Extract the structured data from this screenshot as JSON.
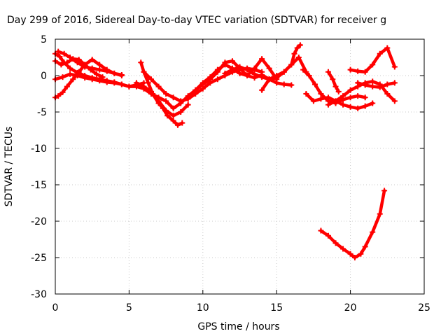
{
  "chart_data": {
    "type": "scatter",
    "title": "Day 299 of 2016, Sidereal Day-to-day VTEC variation (SDTVAR) for receiver g",
    "xlabel": "GPS time / hours",
    "ylabel": "SDTVAR / TECUs",
    "xlim": [
      0,
      25
    ],
    "ylim": [
      -30,
      5
    ],
    "x_ticks": [
      0,
      5,
      10,
      15,
      20,
      25
    ],
    "y_ticks": [
      5,
      0,
      -5,
      -10,
      -15,
      -20,
      -25,
      -30
    ],
    "grid": true,
    "legend": "none",
    "marker": "plus",
    "color": "#ff0000",
    "series": [
      {
        "x": [
          0.0,
          0.3,
          0.6,
          1.0,
          1.5,
          2.0,
          2.5,
          3.0,
          3.5,
          4.0,
          4.5,
          5.0,
          5.5,
          6.0,
          6.5,
          7.0,
          7.5,
          8.0,
          8.5,
          9.0,
          9.5,
          10.0,
          10.5,
          11.0,
          11.5,
          12.0,
          12.5,
          13.0,
          13.5,
          14.0,
          14.5,
          15.0,
          15.5,
          16.0
        ],
        "y": [
          3.0,
          2.6,
          1.8,
          1.0,
          0.4,
          0.0,
          -0.3,
          -0.5,
          -0.7,
          -0.9,
          -1.2,
          -1.5,
          -1.5,
          -1.8,
          -2.5,
          -3.0,
          -3.5,
          -4.5,
          -3.8,
          -2.8,
          -2.0,
          -1.0,
          -0.2,
          0.8,
          1.5,
          1.0,
          0.3,
          0.0,
          -0.3,
          0.1,
          -0.5,
          -1.0,
          -1.2,
          -1.3
        ]
      },
      {
        "x": [
          0.0,
          0.2,
          0.5,
          0.8,
          1.2,
          1.6,
          2.0,
          2.5,
          3.0,
          3.5,
          4.0,
          4.5
        ],
        "y": [
          -3.0,
          -2.8,
          -2.3,
          -1.5,
          -0.5,
          0.5,
          1.5,
          2.2,
          1.5,
          0.8,
          0.3,
          0.0
        ]
      },
      {
        "x": [
          0.0,
          0.4,
          0.8,
          1.2,
          1.6,
          2.0,
          2.4,
          2.8,
          3.2
        ],
        "y": [
          2.0,
          1.5,
          1.8,
          2.3,
          2.2,
          1.5,
          0.8,
          0.2,
          -0.2
        ]
      },
      {
        "x": [
          0.2,
          0.6,
          1.0,
          1.5,
          2.0,
          2.5,
          3.0,
          3.5,
          4.0,
          4.5
        ],
        "y": [
          3.3,
          3.0,
          2.5,
          1.8,
          1.2,
          1.0,
          0.8,
          0.6,
          0.3,
          0.1
        ]
      },
      {
        "x": [
          0.0,
          0.5,
          1.0,
          1.5,
          2.0,
          2.5,
          3.0,
          3.5,
          4.0,
          4.5,
          5.0,
          5.5,
          6.0
        ],
        "y": [
          -0.5,
          -0.2,
          0.2,
          0.0,
          -0.3,
          -0.5,
          -0.7,
          -0.9,
          -1.0,
          -1.2,
          -1.5,
          -1.3,
          -1.0
        ]
      },
      {
        "x": [
          5.8,
          6.0,
          6.3,
          6.6,
          7.0,
          7.3,
          7.6,
          8.0,
          8.3,
          8.6
        ],
        "y": [
          1.8,
          0.5,
          -1.0,
          -2.5,
          -3.8,
          -4.5,
          -5.5,
          -6.2,
          -6.8,
          -6.5
        ]
      },
      {
        "x": [
          5.5,
          6.0,
          6.5,
          7.0,
          7.5,
          8.0,
          8.5,
          9.0
        ],
        "y": [
          -1.0,
          -1.5,
          -2.2,
          -3.5,
          -4.8,
          -5.5,
          -5.0,
          -4.0
        ]
      },
      {
        "x": [
          6.0,
          6.5,
          7.0,
          7.5,
          8.0,
          8.5,
          9.0,
          9.5,
          10.0,
          10.5,
          11.0,
          11.5,
          12.0,
          12.5,
          13.0,
          13.5,
          14.0
        ],
        "y": [
          0.5,
          -0.5,
          -1.5,
          -2.5,
          -3.0,
          -3.5,
          -3.2,
          -2.5,
          -1.8,
          -1.0,
          -0.5,
          0.0,
          0.5,
          0.8,
          1.0,
          0.8,
          0.5
        ]
      },
      {
        "x": [
          9.0,
          9.5,
          10.0,
          10.5,
          11.0,
          11.5,
          12.0,
          12.5,
          13.0,
          13.5,
          14.0,
          14.5,
          15.0
        ],
        "y": [
          -3.0,
          -2.0,
          -1.2,
          -0.5,
          0.5,
          1.8,
          2.0,
          1.0,
          0.0,
          1.0,
          2.3,
          1.0,
          -0.5
        ]
      },
      {
        "x": [
          11.5,
          12.0,
          12.5,
          13.0,
          13.5,
          14.0,
          14.5,
          15.0,
          15.5,
          16.0,
          16.5,
          17.0
        ],
        "y": [
          0.3,
          0.8,
          1.2,
          0.8,
          0.2,
          -0.2,
          -0.5,
          -0.3,
          0.5,
          1.5,
          2.5,
          0.5
        ]
      },
      {
        "x": [
          14.0,
          14.5,
          15.0,
          15.5,
          16.0,
          16.2,
          16.4,
          16.6
        ],
        "y": [
          -2.0,
          -0.5,
          0.0,
          0.5,
          1.5,
          3.0,
          3.8,
          4.2
        ]
      },
      {
        "x": [
          16.8,
          17.2,
          17.6,
          18.0,
          18.5,
          19.0,
          19.5,
          20.0,
          20.5,
          21.0
        ],
        "y": [
          0.8,
          0.0,
          -1.2,
          -2.5,
          -3.5,
          -3.8,
          -3.3,
          -3.0,
          -2.8,
          -3.0
        ]
      },
      {
        "x": [
          17.0,
          17.5,
          18.0,
          18.5,
          19.0,
          19.5,
          20.0,
          20.5,
          21.0,
          21.5
        ],
        "y": [
          -2.5,
          -3.5,
          -3.2,
          -3.0,
          -3.5,
          -4.0,
          -4.3,
          -4.5,
          -4.2,
          -3.8
        ]
      },
      {
        "x": [
          18.5,
          19.0,
          19.5,
          20.0,
          20.5,
          21.0,
          21.5,
          22.0,
          22.5,
          23.0
        ],
        "y": [
          -4.0,
          -3.5,
          -2.8,
          -2.0,
          -1.5,
          -1.0,
          -0.8,
          -1.2,
          -2.5,
          -3.5
        ]
      },
      {
        "x": [
          18.5,
          18.8,
          19.0,
          19.2
        ],
        "y": [
          0.5,
          -0.5,
          -1.5,
          -2.2
        ]
      },
      {
        "x": [
          20.0,
          20.5,
          21.0,
          21.5,
          22.0,
          22.5,
          23.0
        ],
        "y": [
          0.8,
          0.6,
          0.5,
          1.5,
          3.0,
          3.8,
          1.2
        ]
      },
      {
        "x": [
          20.5,
          21.0,
          21.5,
          22.0,
          22.5,
          23.0
        ],
        "y": [
          -1.0,
          -1.3,
          -1.5,
          -1.6,
          -1.2,
          -1.0
        ]
      },
      {
        "x": [
          18.0,
          18.5,
          19.0,
          19.5,
          20.0,
          20.3,
          20.7,
          21.0,
          21.5,
          22.0,
          22.3
        ],
        "y": [
          -21.3,
          -22.0,
          -23.0,
          -23.8,
          -24.5,
          -25.0,
          -24.5,
          -23.5,
          -21.5,
          -19.0,
          -15.8
        ]
      }
    ]
  }
}
